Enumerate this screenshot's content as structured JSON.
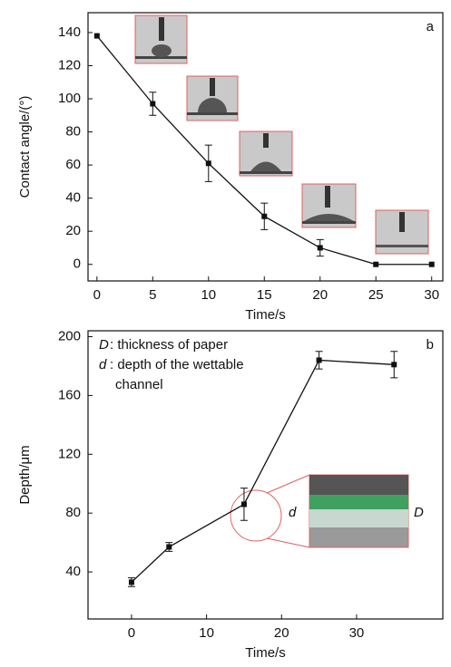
{
  "chart_data": [
    {
      "type": "line",
      "panel_label": "a",
      "xlabel": "Time/s",
      "ylabel": "Contact angle/(°)",
      "x": [
        0,
        5,
        10,
        15,
        20,
        25,
        30
      ],
      "series": [
        {
          "color": "#111111",
          "values": [
            138,
            97,
            61,
            29,
            10,
            0,
            0
          ],
          "errors": [
            0,
            7,
            11,
            8,
            5,
            0,
            0
          ]
        }
      ],
      "xlim": [
        -0.8,
        31
      ],
      "xticks": [
        0,
        5,
        10,
        15,
        20,
        25,
        30
      ],
      "ylim": [
        -10,
        152
      ],
      "yticks": [
        0,
        20,
        40,
        60,
        80,
        100,
        120,
        140
      ]
    },
    {
      "type": "line",
      "panel_label": "b",
      "xlabel": "Time/s",
      "ylabel": "Depth/μm",
      "x": [
        0,
        5,
        15,
        25,
        35
      ],
      "series": [
        {
          "color": "#111111",
          "values": [
            33,
            57,
            86,
            184,
            181
          ],
          "errors": [
            3,
            3,
            11,
            6,
            9
          ]
        }
      ],
      "xlim": [
        -5.8,
        41.5
      ],
      "xticks": [
        0,
        10,
        20,
        30
      ],
      "ylim": [
        8,
        204
      ],
      "yticks": [
        40,
        80,
        120,
        160,
        200
      ],
      "notes": [
        {
          "symbol": "D",
          "lines": [
            ": thickness of paper"
          ]
        },
        {
          "symbol": "d",
          "lines": [
            ": depth of the wettable",
            "channel"
          ]
        }
      ],
      "inset_labels": [
        "d",
        "D"
      ]
    }
  ]
}
